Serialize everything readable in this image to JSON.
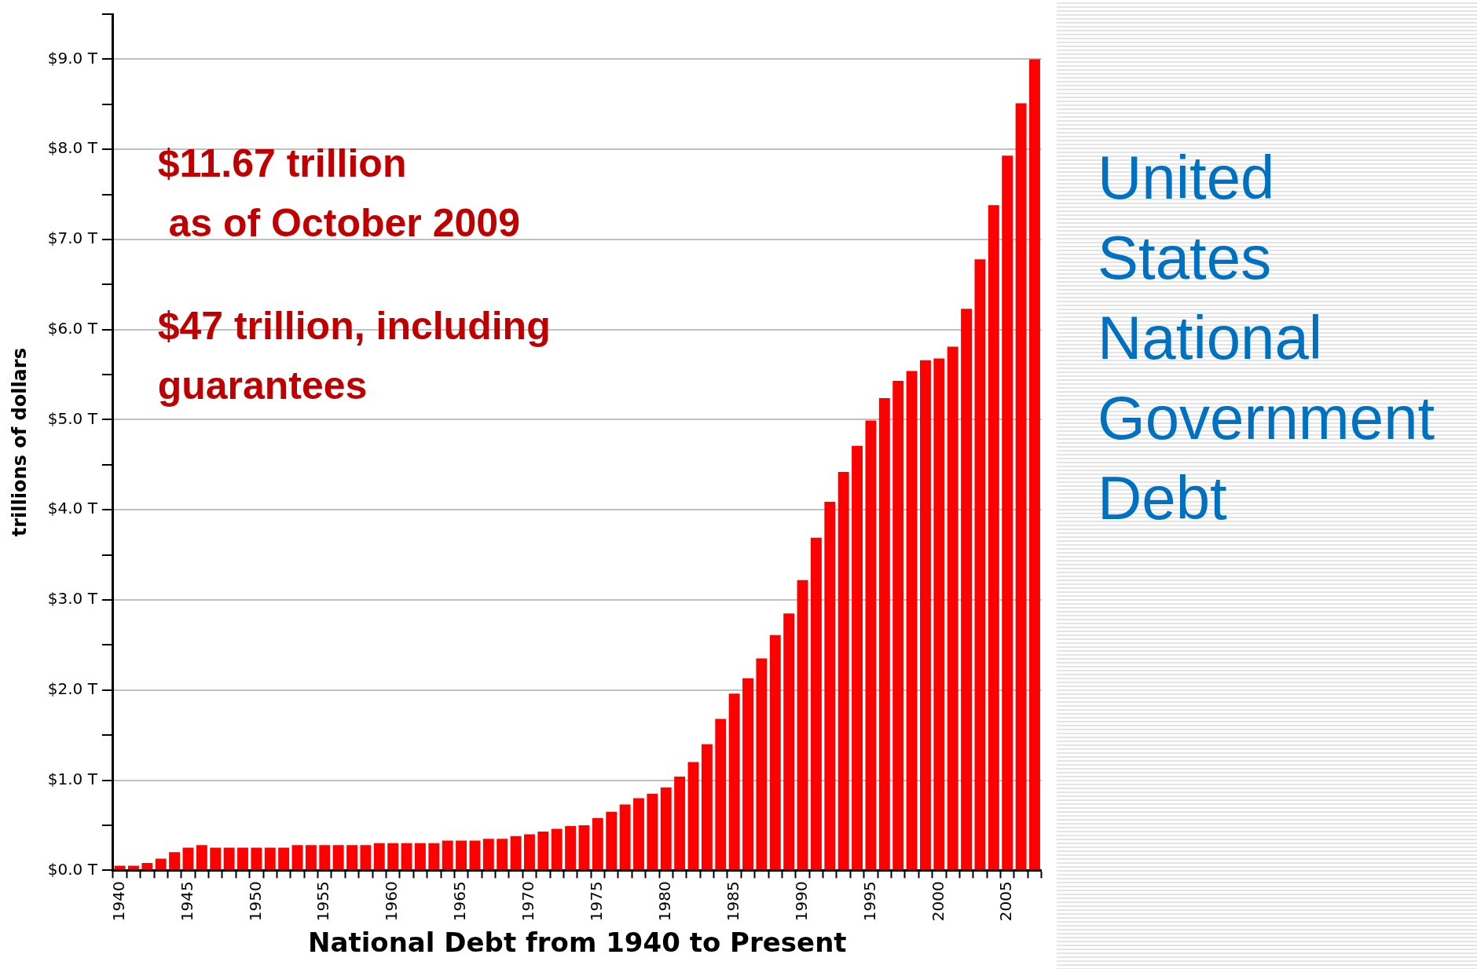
{
  "chart_data": {
    "type": "bar",
    "title": "United States National Government Debt",
    "xlabel": "National Debt from 1940 to Present",
    "ylabel": "trillions of dollars",
    "annotations": [
      "$11.67 trillion\n as of October 2009",
      "$47 trillion, including\nguarantees"
    ],
    "categories": [
      "1940",
      null,
      null,
      null,
      null,
      "1945",
      null,
      null,
      null,
      null,
      "1950",
      null,
      null,
      null,
      null,
      "1955",
      null,
      null,
      null,
      null,
      "1960",
      null,
      null,
      null,
      null,
      "1965",
      null,
      null,
      null,
      null,
      "1970",
      null,
      null,
      null,
      null,
      "1975",
      null,
      null,
      null,
      null,
      "1980",
      null,
      null,
      null,
      null,
      "1985",
      null,
      null,
      null,
      null,
      "1990",
      null,
      null,
      null,
      null,
      "1995",
      null,
      null,
      null,
      null,
      "2000",
      null,
      null,
      null,
      null,
      "2005",
      null,
      null
    ],
    "values": [
      0.05,
      0.05,
      0.08,
      0.13,
      0.2,
      0.25,
      0.28,
      0.25,
      0.25,
      0.25,
      0.25,
      0.25,
      0.25,
      0.28,
      0.28,
      0.28,
      0.28,
      0.28,
      0.28,
      0.3,
      0.3,
      0.3,
      0.3,
      0.3,
      0.33,
      0.33,
      0.33,
      0.35,
      0.35,
      0.38,
      0.4,
      0.43,
      0.46,
      0.49,
      0.5,
      0.58,
      0.65,
      0.73,
      0.8,
      0.85,
      0.92,
      1.04,
      1.2,
      1.4,
      1.68,
      1.96,
      2.13,
      2.35,
      2.61,
      2.85,
      3.22,
      3.69,
      4.09,
      4.42,
      4.71,
      4.99,
      5.24,
      5.43,
      5.54,
      5.66,
      5.68,
      5.81,
      6.23,
      6.78,
      7.38,
      7.93,
      8.51,
      9.0
    ],
    "color": "#ff0000",
    "ylim": [
      0,
      9.5
    ],
    "yticks": [
      {
        "value": 0,
        "label": "$0.0 T"
      },
      {
        "value": 0.5,
        "label": null
      },
      {
        "value": 1,
        "label": "$1.0 T"
      },
      {
        "value": 1.5,
        "label": null
      },
      {
        "value": 2,
        "label": "$2.0 T"
      },
      {
        "value": 2.5,
        "label": null
      },
      {
        "value": 3,
        "label": "$3.0 T"
      },
      {
        "value": 3.5,
        "label": null
      },
      {
        "value": 4,
        "label": "$4.0 T"
      },
      {
        "value": 4.5,
        "label": null
      },
      {
        "value": 5,
        "label": "$5.0 T"
      },
      {
        "value": 5.5,
        "label": null
      },
      {
        "value": 6,
        "label": "$6.0 T"
      },
      {
        "value": 6.5,
        "label": null
      },
      {
        "value": 7,
        "label": "$7.0 T"
      },
      {
        "value": 7.5,
        "label": null
      },
      {
        "value": 8,
        "label": "$8.0 T"
      },
      {
        "value": 8.5,
        "label": null
      },
      {
        "value": 9,
        "label": "$9.0 T"
      },
      {
        "value": 9.5,
        "label": null
      }
    ],
    "grid": "y",
    "legend": false
  }
}
